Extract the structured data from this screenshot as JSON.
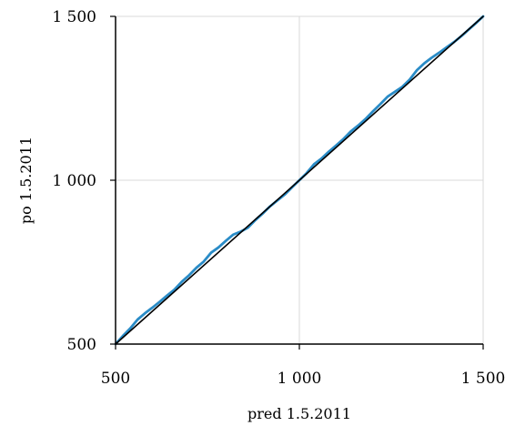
{
  "chart_data": {
    "type": "line",
    "title": "",
    "xlabel": "pred 1.5.2011",
    "ylabel": "po 1.5.2011",
    "xlim": [
      500,
      1500
    ],
    "ylim": [
      500,
      1500
    ],
    "x_ticks": [
      500,
      1000,
      1500
    ],
    "y_ticks": [
      500,
      1000,
      1500
    ],
    "x_tick_labels": [
      "500",
      "1 000",
      "1 500"
    ],
    "y_tick_labels": [
      "500",
      "1 000",
      "1 500"
    ],
    "grid": true,
    "legend": "none",
    "series": [
      {
        "style": "blue-curve",
        "color": "#2a8cc7",
        "x": [
          500,
          520,
          540,
          560,
          580,
          600,
          620,
          640,
          660,
          680,
          700,
          720,
          740,
          760,
          780,
          800,
          820,
          840,
          860,
          880,
          900,
          920,
          940,
          960,
          980,
          1000,
          1020,
          1040,
          1060,
          1080,
          1100,
          1120,
          1140,
          1160,
          1180,
          1200,
          1220,
          1240,
          1260,
          1280,
          1300,
          1320,
          1340,
          1360,
          1380,
          1400,
          1420,
          1440,
          1460,
          1480,
          1500
        ],
        "y": [
          500,
          525,
          548,
          575,
          594,
          611,
          629,
          648,
          666,
          690,
          710,
          733,
          752,
          779,
          795,
          815,
          834,
          843,
          855,
          878,
          898,
          920,
          938,
          956,
          978,
          1000,
          1022,
          1049,
          1066,
          1087,
          1106,
          1126,
          1149,
          1167,
          1187,
          1210,
          1232,
          1255,
          1270,
          1285,
          1307,
          1336,
          1357,
          1374,
          1389,
          1405,
          1421,
          1439,
          1459,
          1479,
          1500
        ]
      },
      {
        "style": "reference-diagonal",
        "color": "#000000",
        "x": [
          500,
          1500
        ],
        "y": [
          500,
          1500
        ]
      }
    ]
  }
}
